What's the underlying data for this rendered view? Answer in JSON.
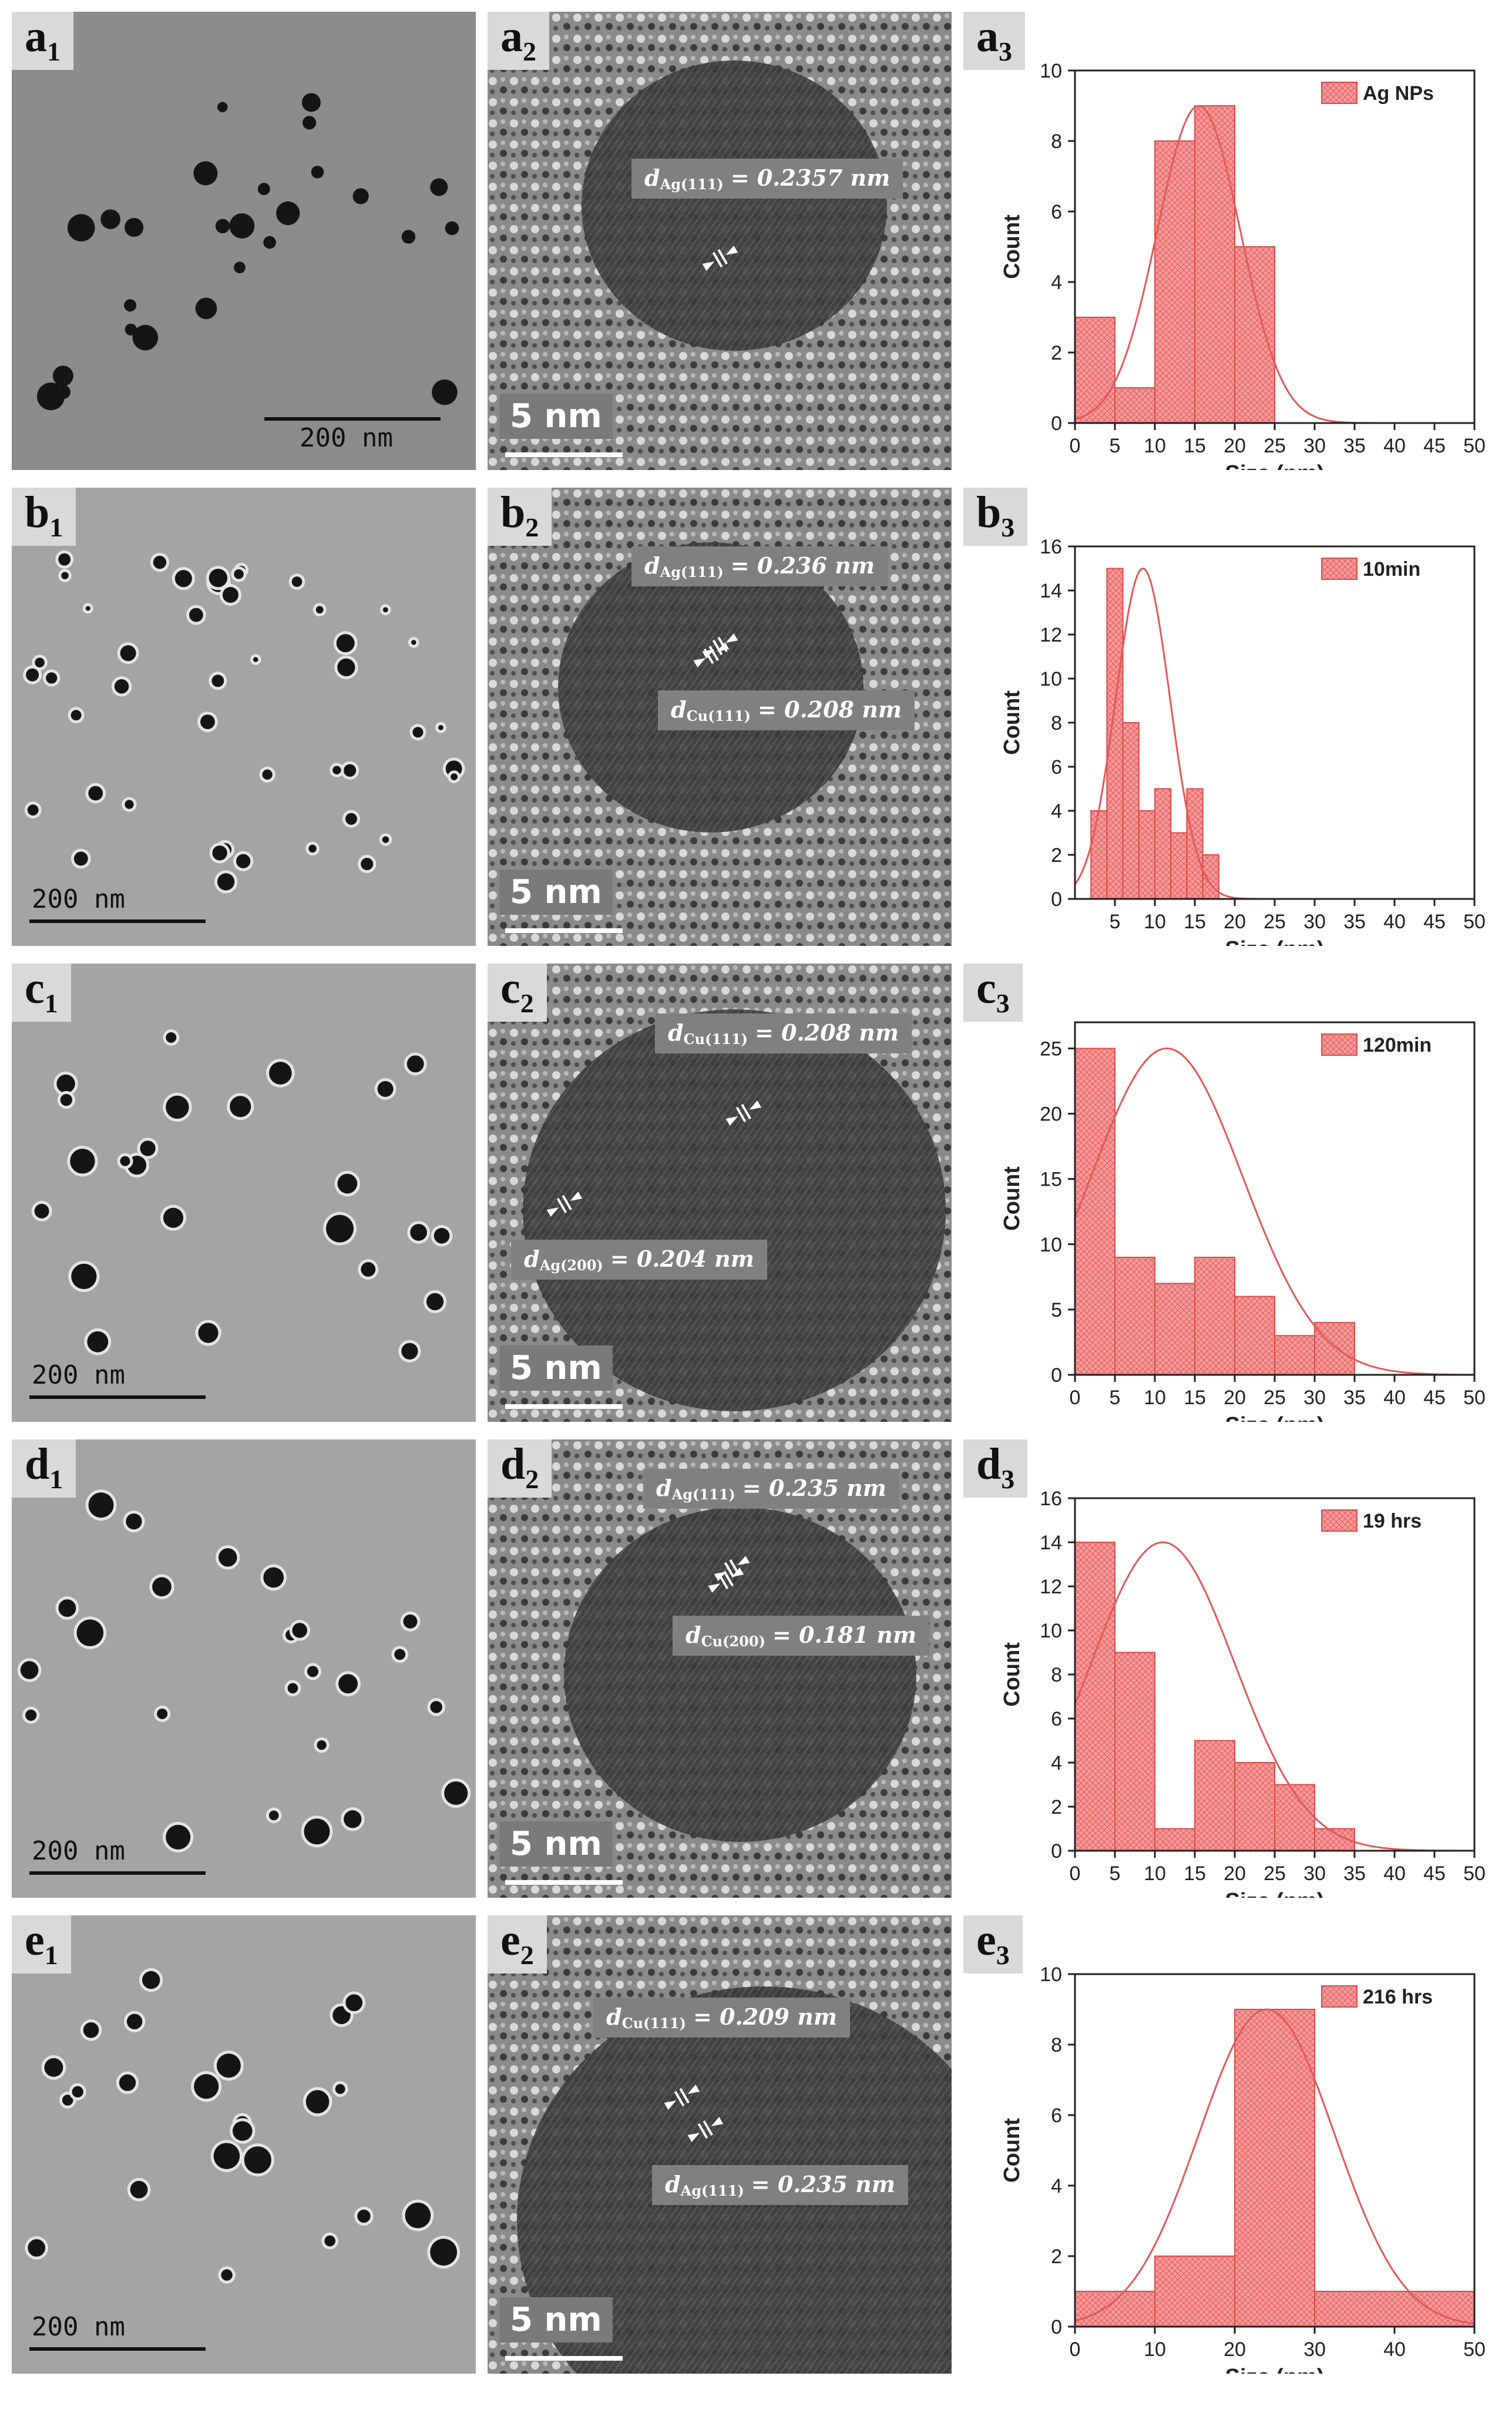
{
  "rows": [
    {
      "id": "a",
      "tem": {
        "label": "a",
        "sub": "1",
        "scalebar": "200  nm",
        "sb_pos": "bottom-right"
      },
      "hrtem": {
        "label": "a",
        "sub": "2",
        "scalebar": "5 nm",
        "spacings": [
          {
            "d": "d",
            "sub": "Ag(111)",
            "value": "= 0.2357 nm"
          }
        ]
      },
      "chart": {
        "label": "a",
        "sub": "3"
      }
    },
    {
      "id": "b",
      "tem": {
        "label": "b",
        "sub": "1",
        "scalebar": "200 nm",
        "sb_pos": "bottom-left"
      },
      "hrtem": {
        "label": "b",
        "sub": "2",
        "scalebar": "5 nm",
        "spacings": [
          {
            "d": "d",
            "sub": "Ag(111)",
            "value": "= 0.236 nm"
          },
          {
            "d": "d",
            "sub": "Cu(111)",
            "value": "= 0.208 nm"
          }
        ]
      },
      "chart": {
        "label": "b",
        "sub": "3"
      }
    },
    {
      "id": "c",
      "tem": {
        "label": "c",
        "sub": "1",
        "scalebar": "200 nm",
        "sb_pos": "bottom-left"
      },
      "hrtem": {
        "label": "c",
        "sub": "2",
        "scalebar": "5 nm",
        "spacings": [
          {
            "d": "d",
            "sub": "Cu(111)",
            "value": "= 0.208 nm"
          },
          {
            "d": "d",
            "sub": "Ag(200)",
            "value": "= 0.204 nm"
          }
        ]
      },
      "chart": {
        "label": "c",
        "sub": "3"
      }
    },
    {
      "id": "d",
      "tem": {
        "label": "d",
        "sub": "1",
        "scalebar": "200 nm",
        "sb_pos": "bottom-left"
      },
      "hrtem": {
        "label": "d",
        "sub": "2",
        "scalebar": "5 nm",
        "spacings": [
          {
            "d": "d",
            "sub": "Ag(111)",
            "value": "= 0.235 nm"
          },
          {
            "d": "d",
            "sub": "Cu(200)",
            "value": "= 0.181 nm"
          }
        ]
      },
      "chart": {
        "label": "d",
        "sub": "3"
      }
    },
    {
      "id": "e",
      "tem": {
        "label": "e",
        "sub": "1",
        "scalebar": "200 nm",
        "sb_pos": "bottom-left"
      },
      "hrtem": {
        "label": "e",
        "sub": "2",
        "scalebar": "5 nm",
        "spacings": [
          {
            "d": "d",
            "sub": "Cu(111)",
            "value": "= 0.209 nm"
          },
          {
            "d": "d",
            "sub": "Ag(111)",
            "value": "= 0.235 nm"
          }
        ]
      },
      "chart": {
        "label": "e",
        "sub": "3"
      }
    }
  ],
  "colors": {
    "bar_fill": "#f59a9a",
    "bar_stroke": "#e04848",
    "curve": "#e45757",
    "tem_bg": "#9a9a9a",
    "hrtem_bg": "#5a5a5a"
  },
  "chart_data": [
    {
      "type": "bar",
      "legend": "Ag NPs",
      "legend_position": "top-right",
      "xlabel": "Size (nm)",
      "ylabel": "Count",
      "xlim": [
        0,
        50
      ],
      "ylim": [
        0,
        10
      ],
      "xticks": [
        0,
        5,
        10,
        15,
        20,
        25,
        30,
        35,
        40,
        45,
        50
      ],
      "yticks": [
        0,
        2,
        4,
        6,
        8,
        10
      ],
      "bins": [
        [
          0,
          5,
          3
        ],
        [
          5,
          10,
          1
        ],
        [
          10,
          15,
          8
        ],
        [
          15,
          20,
          9
        ],
        [
          20,
          25,
          5
        ]
      ],
      "fit": {
        "mean": 15.5,
        "sd": 5.2,
        "peak": 9
      }
    },
    {
      "type": "bar",
      "legend": "10min",
      "legend_position": "top-right",
      "xlabel": "Size (nm)",
      "ylabel": "Count",
      "xlim": [
        0,
        50
      ],
      "ylim": [
        0,
        16
      ],
      "xticks": [
        5,
        10,
        15,
        20,
        25,
        30,
        35,
        40,
        45,
        50
      ],
      "yticks": [
        0,
        2,
        4,
        6,
        8,
        10,
        12,
        14,
        16
      ],
      "bins": [
        [
          2,
          4,
          4
        ],
        [
          4,
          6,
          15
        ],
        [
          6,
          8,
          8
        ],
        [
          8,
          10,
          4
        ],
        [
          10,
          12,
          5
        ],
        [
          12,
          14,
          3
        ],
        [
          14,
          16,
          5
        ],
        [
          16,
          18,
          2
        ]
      ],
      "fit": {
        "mean": 8.5,
        "sd": 3.4,
        "peak": 15
      }
    },
    {
      "type": "bar",
      "legend": "120min",
      "legend_position": "top-right",
      "xlabel": "Size (nm)",
      "ylabel": "Count",
      "xlim": [
        0,
        50
      ],
      "ylim": [
        0,
        27
      ],
      "xticks": [
        0,
        5,
        10,
        15,
        20,
        25,
        30,
        35,
        40,
        45,
        50
      ],
      "yticks": [
        0,
        5,
        10,
        15,
        20,
        25
      ],
      "bins": [
        [
          0,
          5,
          25
        ],
        [
          5,
          10,
          9
        ],
        [
          10,
          15,
          7
        ],
        [
          15,
          20,
          9
        ],
        [
          20,
          25,
          6
        ],
        [
          25,
          30,
          3
        ],
        [
          30,
          35,
          4
        ]
      ],
      "fit": {
        "mean": 11.5,
        "sd": 9.5,
        "peak": 25
      }
    },
    {
      "type": "bar",
      "legend": "19 hrs",
      "legend_position": "top-right",
      "xlabel": "Size (nm)",
      "ylabel": "Count",
      "xlim": [
        0,
        50
      ],
      "ylim": [
        0,
        16
      ],
      "xticks": [
        0,
        5,
        10,
        15,
        20,
        25,
        30,
        35,
        40,
        45,
        50
      ],
      "yticks": [
        0,
        2,
        4,
        6,
        8,
        10,
        12,
        14,
        16
      ],
      "bins": [
        [
          0,
          5,
          14
        ],
        [
          5,
          10,
          9
        ],
        [
          10,
          15,
          1
        ],
        [
          15,
          20,
          5
        ],
        [
          20,
          25,
          4
        ],
        [
          25,
          30,
          3
        ],
        [
          30,
          35,
          1
        ]
      ],
      "fit": {
        "mean": 11,
        "sd": 9,
        "peak": 14
      }
    },
    {
      "type": "bar",
      "legend": "216 hrs",
      "legend_position": "top-right",
      "xlabel": "Size (nm)",
      "ylabel": "Count",
      "xlim": [
        0,
        50
      ],
      "ylim": [
        0,
        10
      ],
      "xticks": [
        0,
        10,
        20,
        30,
        40,
        50
      ],
      "yticks": [
        0,
        2,
        4,
        6,
        8,
        10
      ],
      "bins": [
        [
          0,
          10,
          1
        ],
        [
          10,
          20,
          2
        ],
        [
          20,
          30,
          9
        ],
        [
          30,
          50,
          1
        ]
      ],
      "fit": {
        "mean": 24,
        "sd": 8.5,
        "peak": 9
      }
    }
  ]
}
